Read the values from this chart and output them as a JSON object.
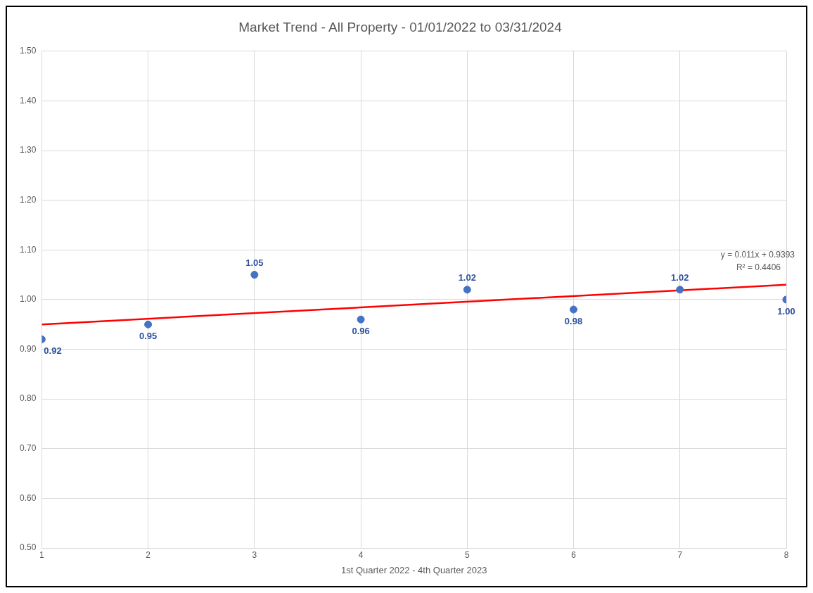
{
  "chart_data": {
    "type": "scatter",
    "title": "Market Trend - All Property - 01/01/2022 to 03/31/2024",
    "xlabel": "1st Quarter 2022 - 4th Quarter 2023",
    "x": [
      1,
      2,
      3,
      4,
      5,
      6,
      7,
      8
    ],
    "series": [
      {
        "type": "scatter",
        "color": "#4472c4",
        "values": [
          0.92,
          0.95,
          1.05,
          0.96,
          1.02,
          0.98,
          1.02,
          1.0
        ],
        "value_labels": [
          "0.92",
          "0.95",
          "1.05",
          "0.96",
          "1.02",
          "0.98",
          "1.02",
          "1.00"
        ]
      },
      {
        "type": "line",
        "color": "#ff0000",
        "x": [
          1,
          8
        ],
        "values": [
          0.95,
          1.03
        ],
        "marker": "none"
      }
    ],
    "xlim": [
      1,
      8
    ],
    "xticks": [
      1,
      2,
      3,
      4,
      5,
      6,
      7,
      8
    ],
    "ylim": [
      0.5,
      1.5
    ],
    "yticks": [
      {
        "value": 0.5,
        "label": "0.50"
      },
      {
        "value": 0.6,
        "label": "0.60"
      },
      {
        "value": 0.7,
        "label": "0.70"
      },
      {
        "value": 0.8,
        "label": "0.80"
      },
      {
        "value": 0.9,
        "label": "0.90"
      },
      {
        "value": 1.0,
        "label": "1.00"
      },
      {
        "value": 1.1,
        "label": "1.10"
      },
      {
        "value": 1.2,
        "label": "1.20"
      },
      {
        "value": 1.3,
        "label": "1.30"
      },
      {
        "value": 1.4,
        "label": "1.40"
      },
      {
        "value": 1.5,
        "label": "1.50"
      }
    ],
    "grid": true,
    "legend": false,
    "marker": "circle",
    "annotations": [
      "y = 0.011x + 0.9393",
      "R² = 0.4406"
    ]
  }
}
